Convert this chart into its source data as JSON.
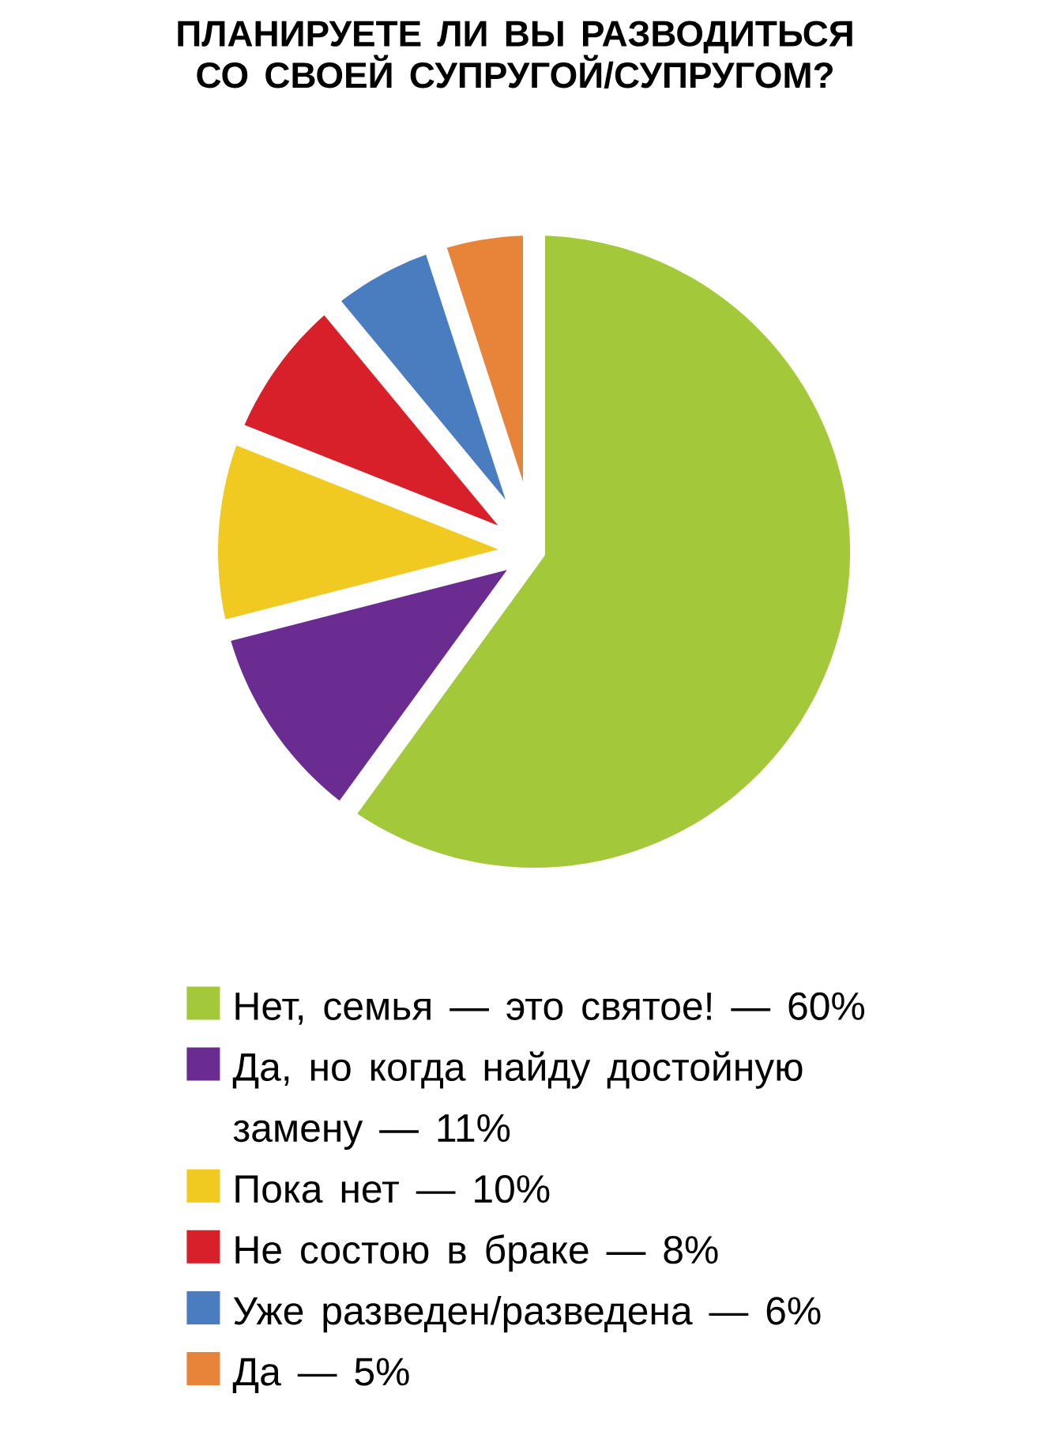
{
  "chart_data": {
    "type": "pie",
    "title": "ПЛАНИРУЕТЕ ЛИ ВЫ РАЗВОДИТЬСЯ СО СВОЕЙ СУПРУГОЙ/СУПРУГОМ?",
    "categories": [
      "Нет, семья — это святое! — 60%",
      "Да, но когда найду достойную замену — 11%",
      "Пока нет — 10%",
      "Не состою в браке — 8%",
      "Уже разведен/разведена — 6%",
      "Да — 5%"
    ],
    "values": [
      60,
      11,
      10,
      8,
      6,
      5
    ],
    "colors": [
      "#a3c83a",
      "#6a2c91",
      "#f0c921",
      "#d7202a",
      "#4a7cc0",
      "#e8843a"
    ],
    "legend": "bottom"
  }
}
